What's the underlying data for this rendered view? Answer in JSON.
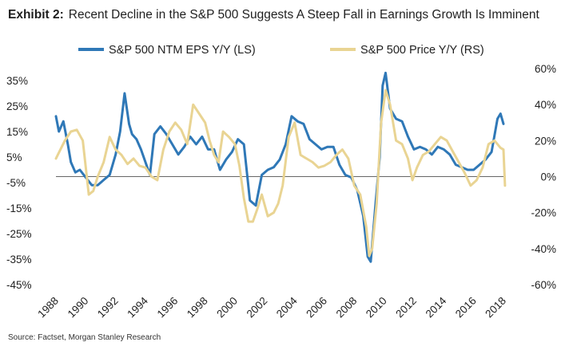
{
  "header": {
    "exhibit": "Exhibit 2:",
    "title": "Recent Decline in the S&P 500 Suggests A Steep Fall in Earnings Growth Is Imminent"
  },
  "source": "Source: Factset, Morgan Stanley Research",
  "colors": {
    "eps": "#2f78b7",
    "price": "#e9d493",
    "zero": "#666666"
  },
  "chart_data": {
    "type": "line",
    "title": "Recent Decline in the S&P 500 Suggests A Steep Fall in Earnings Growth Is Imminent",
    "legend_position": "top",
    "grid": false,
    "x_ticks": [
      "1988",
      "1990",
      "1992",
      "1994",
      "1996",
      "1998",
      "2000",
      "2002",
      "2004",
      "2006",
      "2008",
      "2010",
      "2012",
      "2014",
      "2016",
      "2018"
    ],
    "xlim": [
      1988,
      2018
    ],
    "left_axis": {
      "ylim": [
        -45,
        35
      ],
      "ticks": [
        35,
        25,
        15,
        5,
        -5,
        -15,
        -25,
        -35,
        -45
      ],
      "tick_labels": [
        "35%",
        "25%",
        "15%",
        "5%",
        "-5%",
        "-15%",
        "-25%",
        "-35%",
        "-45%"
      ]
    },
    "right_axis": {
      "ylim": [
        -60,
        60
      ],
      "ticks": [
        60,
        40,
        20,
        0,
        -20,
        -40,
        -60
      ],
      "tick_labels": [
        "60%",
        "40%",
        "20%",
        "0%",
        "-20%",
        "-40%",
        "-60%"
      ]
    },
    "series": [
      {
        "name": "S&P 500 NTM EPS Y/Y (LS)",
        "axis": "left",
        "x": [
          1988.0,
          1988.2,
          1988.5,
          1988.8,
          1989.0,
          1989.3,
          1989.6,
          1990.0,
          1990.4,
          1990.8,
          1991.2,
          1991.6,
          1992.0,
          1992.3,
          1992.6,
          1992.9,
          1993.1,
          1993.4,
          1993.7,
          1994.0,
          1994.3,
          1994.6,
          1995.0,
          1995.4,
          1995.8,
          1996.2,
          1996.6,
          1997.0,
          1997.4,
          1997.8,
          1998.2,
          1998.6,
          1999.0,
          1999.4,
          1999.8,
          2000.2,
          2000.6,
          2001.0,
          2001.4,
          2001.8,
          2002.2,
          2002.6,
          2003.0,
          2003.4,
          2003.8,
          2004.2,
          2004.6,
          2005.0,
          2005.4,
          2005.8,
          2006.2,
          2006.6,
          2007.0,
          2007.4,
          2007.8,
          2008.2,
          2008.6,
          2008.9,
          2009.1,
          2009.4,
          2009.7,
          2009.9,
          2010.1,
          2010.4,
          2010.8,
          2011.2,
          2011.6,
          2012.0,
          2012.4,
          2012.8,
          2013.2,
          2013.6,
          2014.0,
          2014.4,
          2014.8,
          2015.2,
          2015.6,
          2016.0,
          2016.4,
          2016.8,
          2017.2,
          2017.6,
          2017.8,
          2018.0
        ],
        "values": [
          21,
          15,
          19,
          10,
          3,
          -1,
          0,
          -3,
          -6,
          -6,
          -4,
          -2,
          6,
          15,
          30,
          18,
          14,
          12,
          8,
          3,
          -2,
          14,
          17,
          14,
          10,
          6,
          9,
          13,
          10,
          13,
          8,
          8,
          0,
          4,
          7,
          12,
          10,
          -12,
          -14,
          -2,
          0,
          1,
          4,
          10,
          21,
          19,
          18,
          12,
          10,
          8,
          9,
          9,
          2,
          -2,
          -3,
          -8,
          -18,
          -34,
          -36,
          -15,
          5,
          33,
          38,
          24,
          20,
          19,
          13,
          8,
          9,
          8,
          6,
          9,
          8,
          6,
          2,
          1,
          0,
          0,
          2,
          4,
          7,
          20,
          22,
          18
        ]
      },
      {
        "name": "S&P 500 Price Y/Y (RS)",
        "axis": "right",
        "x": [
          1988.0,
          1988.3,
          1988.6,
          1989.0,
          1989.4,
          1989.8,
          1990.2,
          1990.5,
          1990.8,
          1991.2,
          1991.6,
          1992.0,
          1992.4,
          1992.8,
          1993.2,
          1993.6,
          1994.0,
          1994.4,
          1994.8,
          1995.2,
          1995.6,
          1996.0,
          1996.4,
          1996.8,
          1997.2,
          1997.6,
          1998.0,
          1998.3,
          1998.6,
          1998.9,
          1999.2,
          1999.6,
          2000.0,
          2000.3,
          2000.6,
          2000.9,
          2001.2,
          2001.5,
          2001.8,
          2002.2,
          2002.6,
          2002.9,
          2003.2,
          2003.6,
          2004.0,
          2004.4,
          2004.8,
          2005.2,
          2005.6,
          2006.0,
          2006.4,
          2006.8,
          2007.2,
          2007.6,
          2008.0,
          2008.4,
          2008.8,
          2009.0,
          2009.2,
          2009.5,
          2009.8,
          2010.1,
          2010.4,
          2010.8,
          2011.2,
          2011.6,
          2011.9,
          2012.2,
          2012.6,
          2013.0,
          2013.4,
          2013.8,
          2014.2,
          2014.6,
          2015.0,
          2015.4,
          2015.8,
          2016.2,
          2016.6,
          2017.0,
          2017.4,
          2017.8,
          2018.0,
          2018.1
        ],
        "values": [
          10,
          15,
          20,
          25,
          26,
          20,
          -10,
          -8,
          0,
          8,
          22,
          15,
          12,
          7,
          10,
          6,
          5,
          0,
          -2,
          15,
          25,
          30,
          26,
          18,
          40,
          35,
          30,
          20,
          12,
          8,
          25,
          22,
          18,
          6,
          -12,
          -25,
          -25,
          -18,
          -10,
          -22,
          -20,
          -15,
          -5,
          22,
          30,
          12,
          10,
          8,
          5,
          6,
          8,
          12,
          15,
          10,
          -5,
          -10,
          -28,
          -44,
          -40,
          -15,
          30,
          48,
          40,
          20,
          18,
          10,
          -2,
          5,
          12,
          14,
          18,
          22,
          20,
          14,
          8,
          2,
          -5,
          -2,
          5,
          18,
          20,
          16,
          15,
          -5
        ]
      }
    ]
  }
}
